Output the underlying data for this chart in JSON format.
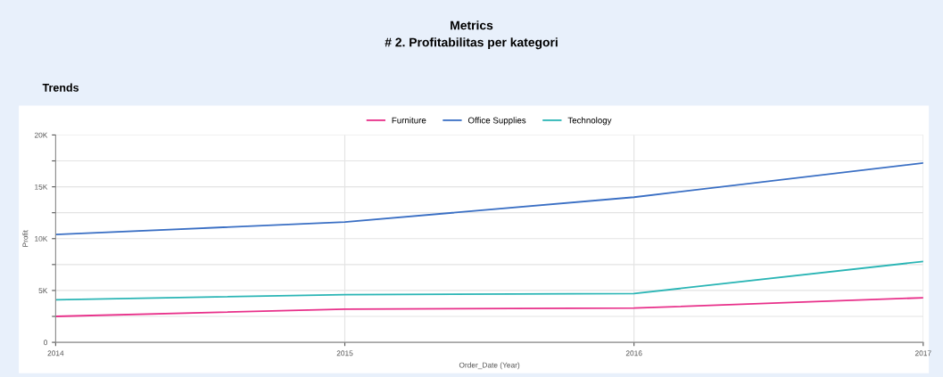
{
  "chart_data": {
    "type": "line",
    "title": "Metrics",
    "subtitle": "# 2. Profitabilitas per kategori",
    "annotations": [
      "Trends"
    ],
    "xlabel": "Order_Date (Year)",
    "ylabel": "Profit",
    "x": [
      2014,
      2015,
      2016,
      2017
    ],
    "series": [
      {
        "name": "Furniture",
        "color": "#e8308a",
        "values": [
          2500,
          3200,
          3300,
          4300
        ]
      },
      {
        "name": "Office Supplies",
        "color": "#3a6fc4",
        "values": [
          10400,
          11600,
          14000,
          17300
        ]
      },
      {
        "name": "Technology",
        "color": "#2ab5b5",
        "values": [
          4100,
          4600,
          4700,
          7800
        ]
      }
    ],
    "xlim": [
      2014,
      2017
    ],
    "xticks": [
      2014,
      2015,
      2016,
      2017
    ],
    "ylim": [
      0,
      20000
    ],
    "yticks": [
      {
        "value": 0,
        "label": "0"
      },
      {
        "value": 2500,
        "label": null
      },
      {
        "value": 5000,
        "label": "5K"
      },
      {
        "value": 7500,
        "label": null
      },
      {
        "value": 10000,
        "label": "10K"
      },
      {
        "value": 12500,
        "label": null
      },
      {
        "value": 15000,
        "label": "15K"
      },
      {
        "value": 17500,
        "label": null
      },
      {
        "value": 20000,
        "label": "20K"
      }
    ],
    "grid": true,
    "legend": "top",
    "marker": "none",
    "line_style": "solid"
  }
}
